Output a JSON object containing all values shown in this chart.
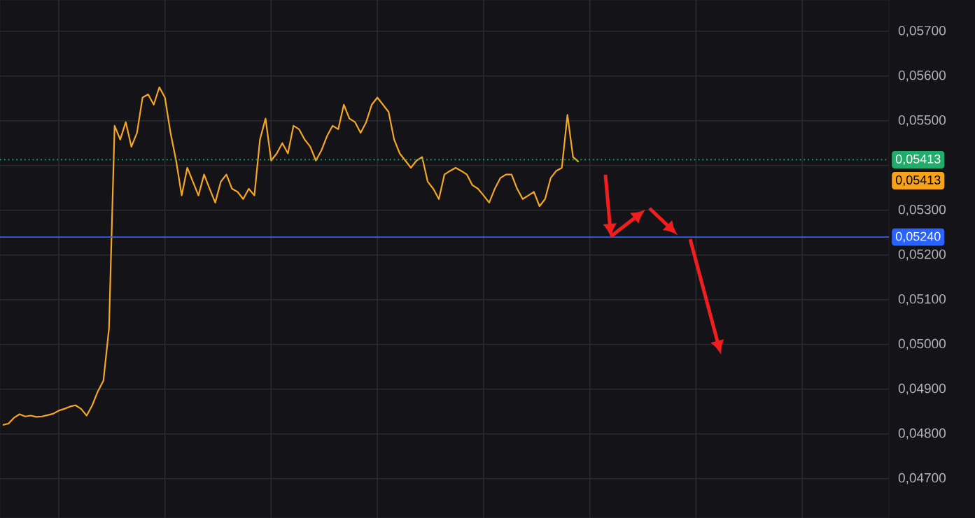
{
  "chart_data": {
    "type": "line",
    "categories": [
      null,
      null,
      null,
      null,
      null,
      null,
      null,
      null,
      null,
      null,
      null,
      null,
      null,
      null,
      null,
      null,
      null,
      null,
      null,
      null,
      null,
      null,
      null,
      null,
      null,
      null,
      null,
      null,
      null,
      null,
      null,
      null,
      null,
      null,
      null,
      null,
      null,
      null,
      null,
      null,
      null,
      null,
      null,
      null,
      null,
      null,
      null,
      null,
      null,
      null,
      null,
      null,
      null,
      null,
      null,
      null,
      null,
      null,
      null,
      null,
      null,
      null,
      null,
      null,
      null,
      null,
      null,
      null,
      null,
      null,
      null,
      null,
      null,
      null,
      null,
      null,
      null,
      null,
      null,
      null,
      null,
      null,
      null,
      null,
      null,
      null,
      null,
      null,
      null,
      null,
      null,
      null,
      null,
      null,
      null,
      null,
      null,
      null,
      null,
      null,
      null,
      null,
      null,
      null,
      null,
      null,
      null,
      null,
      null,
      null,
      null,
      null,
      null,
      null,
      null,
      null,
      null,
      null,
      null,
      null,
      null,
      null,
      null,
      null,
      null,
      null,
      null,
      null,
      null,
      null,
      null,
      null,
      null,
      null,
      null,
      null,
      null,
      null,
      null,
      null,
      null,
      null,
      null,
      null,
      null,
      null,
      null,
      null,
      null,
      null,
      null,
      null,
      null,
      null,
      null,
      null,
      null,
      null,
      null
    ],
    "series": [
      {
        "color": "#f5a623",
        "values": [
          0.0482,
          0.04823,
          0.04836,
          0.04844,
          0.04839,
          0.04841,
          0.04838,
          0.04839,
          0.04842,
          0.04845,
          0.04852,
          0.04856,
          0.04861,
          0.04864,
          0.04856,
          0.04841,
          0.04864,
          0.04895,
          0.04919,
          0.05036,
          0.05489,
          0.05458,
          0.05497,
          0.05442,
          0.05473,
          0.05552,
          0.05559,
          0.05536,
          0.05575,
          0.05552,
          0.05473,
          0.05411,
          0.05333,
          0.05395,
          0.05364,
          0.05333,
          0.0538,
          0.05348,
          0.05317,
          0.05364,
          0.0538,
          0.05348,
          0.05341,
          0.05325,
          0.05348,
          0.05333,
          0.05458,
          0.05505,
          0.05411,
          0.05427,
          0.0545,
          0.05427,
          0.05489,
          0.05481,
          0.05458,
          0.05442,
          0.05411,
          0.05434,
          0.05466,
          0.05489,
          0.05481,
          0.05536,
          0.05505,
          0.05497,
          0.05473,
          0.05497,
          0.05536,
          0.05552,
          0.05536,
          0.0552,
          0.05458,
          0.05427,
          0.05411,
          0.05395,
          0.05411,
          0.05419,
          0.05364,
          0.05348,
          0.05325,
          0.0538,
          0.05388,
          0.05395,
          0.05388,
          0.0538,
          0.05356,
          0.05348,
          0.05333,
          0.05317,
          0.05348,
          0.05372,
          0.0538,
          0.0538,
          0.05348,
          0.05325,
          0.05333,
          0.05341,
          0.05309,
          0.05325,
          0.05372,
          0.05388,
          0.05395,
          0.05513,
          0.05419,
          0.05408,
          null,
          null,
          null,
          null,
          null,
          null,
          null,
          null,
          null,
          null,
          null,
          null,
          null,
          null,
          null,
          null,
          null,
          null,
          null,
          null,
          null,
          null,
          null,
          null,
          null,
          null,
          null,
          null,
          null,
          null,
          null,
          null,
          null,
          null,
          null,
          null,
          null,
          null,
          null,
          null,
          null,
          null,
          null,
          null,
          null,
          null,
          null,
          null,
          null,
          null,
          null,
          null,
          null,
          null,
          null
        ]
      }
    ],
    "ylim": [
      0.04612,
      0.0577
    ],
    "yticks": [
      {
        "value": 0.047,
        "label": "0,04700"
      },
      {
        "value": 0.048,
        "label": "0,04800"
      },
      {
        "value": 0.049,
        "label": "0,04900"
      },
      {
        "value": 0.05,
        "label": "0,05000"
      },
      {
        "value": 0.051,
        "label": "0,05100"
      },
      {
        "value": 0.052,
        "label": "0,05200"
      },
      {
        "value": 0.053,
        "label": "0,05300"
      },
      {
        "value": 0.054,
        "label": null
      },
      {
        "value": 0.055,
        "label": "0,05500"
      },
      {
        "value": 0.056,
        "label": "0,05600"
      },
      {
        "value": 0.057,
        "label": "0,05700"
      }
    ],
    "ref_lines": [
      {
        "axis": "y",
        "value": 0.0524,
        "label": "0,05240",
        "color": "#2962ff",
        "line_style": "solid"
      },
      {
        "axis": "y",
        "value": 0.05413,
        "label": "0,05413",
        "color": "#22ab6b",
        "line_style": "dotted"
      }
    ],
    "annotations": [
      "0,05413"
    ],
    "grid": true,
    "marker": "none",
    "line_style": "solid"
  }
}
